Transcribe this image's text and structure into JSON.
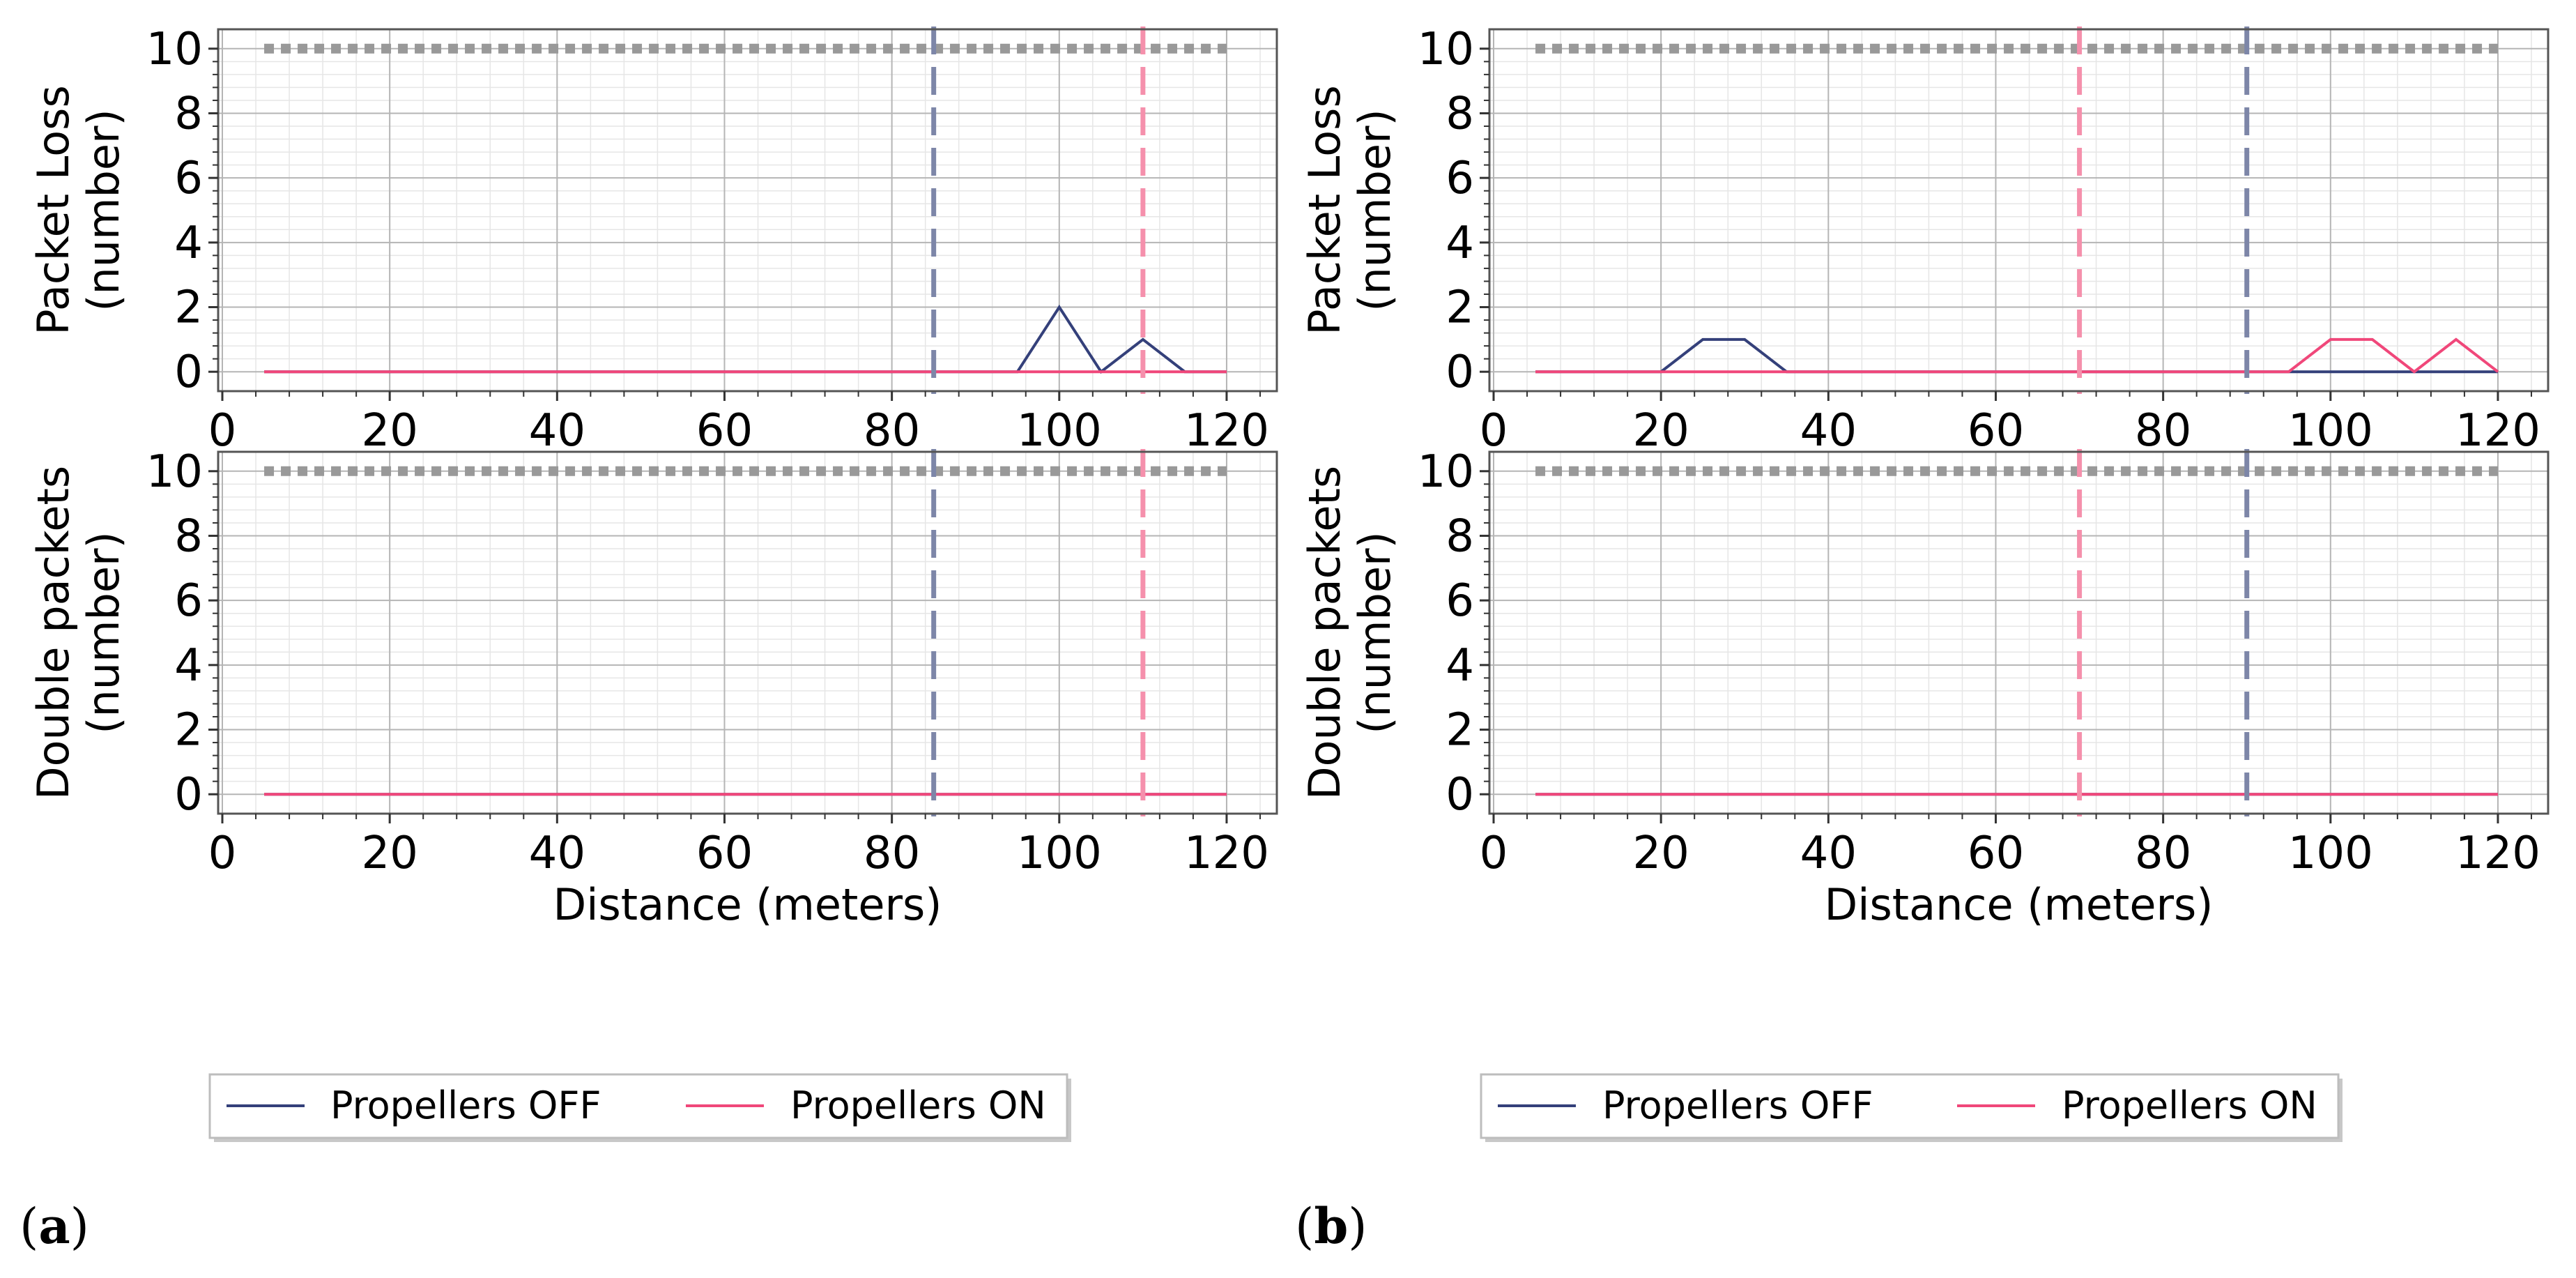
{
  "colors": {
    "off": "#34407a",
    "on": "#f0477a",
    "off_vline": "#7d86a8",
    "on_vline": "#f590ac",
    "threshold": "#999999",
    "grid_major": "#b5b5b5",
    "grid_minor": "#e6e6e6"
  },
  "legends": [
    {
      "off_label": "Propellers OFF",
      "on_label": "Propellers ON"
    },
    {
      "off_label": "Propellers OFF",
      "on_label": "Propellers ON"
    }
  ],
  "panel_labels": [
    {
      "open": "(",
      "letter": "a",
      "close": ")"
    },
    {
      "open": "(",
      "letter": "b",
      "close": ")"
    }
  ],
  "chart_data": [
    {
      "type": "line",
      "panel": "a",
      "row": "top",
      "title": "",
      "xlabel": "",
      "ylabel_line1": "Packet Loss",
      "ylabel_line2": "(number)",
      "xlim": [
        -0.5,
        126
      ],
      "ylim": [
        -0.6,
        10.6
      ],
      "xticks": [
        0,
        20,
        40,
        60,
        80,
        100,
        120
      ],
      "yticks": [
        0,
        2,
        4,
        6,
        8,
        10
      ],
      "threshold": 10,
      "vlines": [
        {
          "x": 85,
          "series": "Propellers OFF"
        },
        {
          "x": 110,
          "series": "Propellers ON"
        }
      ],
      "series": [
        {
          "name": "Propellers OFF",
          "color_key": "off",
          "x": [
            5,
            10,
            15,
            20,
            25,
            30,
            35,
            40,
            45,
            50,
            55,
            60,
            65,
            70,
            75,
            80,
            85,
            90,
            95,
            100,
            105,
            110,
            115,
            120
          ],
          "values": [
            0,
            0,
            0,
            0,
            0,
            0,
            0,
            0,
            0,
            0,
            0,
            0,
            0,
            0,
            0,
            0,
            0,
            0,
            0,
            2,
            0,
            1,
            0,
            0
          ]
        },
        {
          "name": "Propellers ON",
          "color_key": "on",
          "x": [
            5,
            10,
            15,
            20,
            25,
            30,
            35,
            40,
            45,
            50,
            55,
            60,
            65,
            70,
            75,
            80,
            85,
            90,
            95,
            100,
            105,
            110,
            115,
            120
          ],
          "values": [
            0,
            0,
            0,
            0,
            0,
            0,
            0,
            0,
            0,
            0,
            0,
            0,
            0,
            0,
            0,
            0,
            0,
            0,
            0,
            0,
            0,
            0,
            0,
            0
          ]
        }
      ]
    },
    {
      "type": "line",
      "panel": "a",
      "row": "bottom",
      "title": "",
      "xlabel": "Distance (meters)",
      "ylabel_line1": "Double packets",
      "ylabel_line2": "(number)",
      "xlim": [
        -0.5,
        126
      ],
      "ylim": [
        -0.6,
        10.6
      ],
      "xticks": [
        0,
        20,
        40,
        60,
        80,
        100,
        120
      ],
      "yticks": [
        0,
        2,
        4,
        6,
        8,
        10
      ],
      "threshold": 10,
      "vlines": [
        {
          "x": 85,
          "series": "Propellers OFF"
        },
        {
          "x": 110,
          "series": "Propellers ON"
        }
      ],
      "series": [
        {
          "name": "Propellers OFF",
          "color_key": "off",
          "x": [
            5,
            10,
            15,
            20,
            25,
            30,
            35,
            40,
            45,
            50,
            55,
            60,
            65,
            70,
            75,
            80,
            85,
            90,
            95,
            100,
            105,
            110,
            115,
            120
          ],
          "values": [
            0,
            0,
            0,
            0,
            0,
            0,
            0,
            0,
            0,
            0,
            0,
            0,
            0,
            0,
            0,
            0,
            0,
            0,
            0,
            0,
            0,
            0,
            0,
            0
          ]
        },
        {
          "name": "Propellers ON",
          "color_key": "on",
          "x": [
            5,
            10,
            15,
            20,
            25,
            30,
            35,
            40,
            45,
            50,
            55,
            60,
            65,
            70,
            75,
            80,
            85,
            90,
            95,
            100,
            105,
            110,
            115,
            120
          ],
          "values": [
            0,
            0,
            0,
            0,
            0,
            0,
            0,
            0,
            0,
            0,
            0,
            0,
            0,
            0,
            0,
            0,
            0,
            0,
            0,
            0,
            0,
            0,
            0,
            0
          ]
        }
      ]
    },
    {
      "type": "line",
      "panel": "b",
      "row": "top",
      "title": "",
      "xlabel": "",
      "ylabel_line1": "Packet Loss",
      "ylabel_line2": "(number)",
      "xlim": [
        -0.5,
        126
      ],
      "ylim": [
        -0.6,
        10.6
      ],
      "xticks": [
        0,
        20,
        40,
        60,
        80,
        100,
        120
      ],
      "yticks": [
        0,
        2,
        4,
        6,
        8,
        10
      ],
      "threshold": 10,
      "vlines": [
        {
          "x": 70,
          "series": "Propellers ON"
        },
        {
          "x": 90,
          "series": "Propellers OFF"
        }
      ],
      "series": [
        {
          "name": "Propellers OFF",
          "color_key": "off",
          "x": [
            5,
            10,
            15,
            20,
            25,
            30,
            35,
            40,
            45,
            50,
            55,
            60,
            65,
            70,
            75,
            80,
            85,
            90,
            95,
            100,
            105,
            110,
            115,
            120
          ],
          "values": [
            0,
            0,
            0,
            0,
            1,
            1,
            0,
            0,
            0,
            0,
            0,
            0,
            0,
            0,
            0,
            0,
            0,
            0,
            0,
            0,
            0,
            0,
            0,
            0
          ]
        },
        {
          "name": "Propellers ON",
          "color_key": "on",
          "x": [
            5,
            10,
            15,
            20,
            25,
            30,
            35,
            40,
            45,
            50,
            55,
            60,
            65,
            70,
            75,
            80,
            85,
            90,
            95,
            100,
            105,
            110,
            115,
            120
          ],
          "values": [
            0,
            0,
            0,
            0,
            0,
            0,
            0,
            0,
            0,
            0,
            0,
            0,
            0,
            0,
            0,
            0,
            0,
            0,
            0,
            1,
            1,
            0,
            1,
            0
          ]
        }
      ]
    },
    {
      "type": "line",
      "panel": "b",
      "row": "bottom",
      "title": "",
      "xlabel": "Distance (meters)",
      "ylabel_line1": "Double packets",
      "ylabel_line2": "(number)",
      "xlim": [
        -0.5,
        126
      ],
      "ylim": [
        -0.6,
        10.6
      ],
      "xticks": [
        0,
        20,
        40,
        60,
        80,
        100,
        120
      ],
      "yticks": [
        0,
        2,
        4,
        6,
        8,
        10
      ],
      "threshold": 10,
      "vlines": [
        {
          "x": 70,
          "series": "Propellers ON"
        },
        {
          "x": 90,
          "series": "Propellers OFF"
        }
      ],
      "series": [
        {
          "name": "Propellers OFF",
          "color_key": "off",
          "x": [
            5,
            10,
            15,
            20,
            25,
            30,
            35,
            40,
            45,
            50,
            55,
            60,
            65,
            70,
            75,
            80,
            85,
            90,
            95,
            100,
            105,
            110,
            115,
            120
          ],
          "values": [
            0,
            0,
            0,
            0,
            0,
            0,
            0,
            0,
            0,
            0,
            0,
            0,
            0,
            0,
            0,
            0,
            0,
            0,
            0,
            0,
            0,
            0,
            0,
            0
          ]
        },
        {
          "name": "Propellers ON",
          "color_key": "on",
          "x": [
            5,
            10,
            15,
            20,
            25,
            30,
            35,
            40,
            45,
            50,
            55,
            60,
            65,
            70,
            75,
            80,
            85,
            90,
            95,
            100,
            105,
            110,
            115,
            120
          ],
          "values": [
            0,
            0,
            0,
            0,
            0,
            0,
            0,
            0,
            0,
            0,
            0,
            0,
            0,
            0,
            0,
            0,
            0,
            0,
            0,
            0,
            0,
            0,
            0,
            0
          ]
        }
      ]
    }
  ]
}
